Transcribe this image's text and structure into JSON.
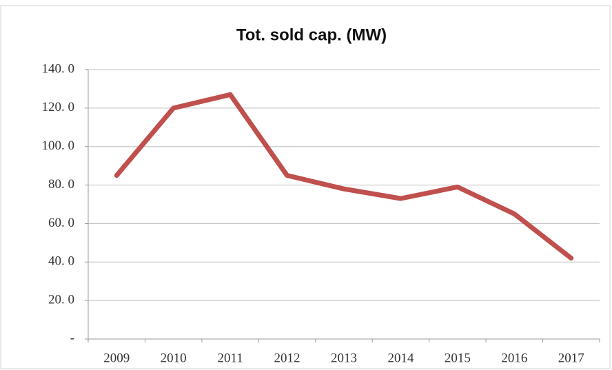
{
  "chart_data": {
    "type": "line",
    "title": "Tot. sold cap. (MW)",
    "categories": [
      "2009",
      "2010",
      "2011",
      "2012",
      "2013",
      "2014",
      "2015",
      "2016",
      "2017"
    ],
    "series": [
      {
        "name": "Tot. sold cap. (MW)",
        "color": "#c0504d",
        "values": [
          85,
          120,
          127,
          85,
          78,
          73,
          79,
          65,
          42
        ]
      }
    ],
    "ylim": [
      0,
      140
    ],
    "yticks": [
      {
        "value": 0,
        "label": "-"
      },
      {
        "value": 20,
        "label": "20. 0"
      },
      {
        "value": 40,
        "label": "40. 0"
      },
      {
        "value": 60,
        "label": "60. 0"
      },
      {
        "value": 80,
        "label": "80. 0"
      },
      {
        "value": 100,
        "label": "100. 0"
      },
      {
        "value": 120,
        "label": "120. 0"
      },
      {
        "value": 140,
        "label": "140. 0"
      }
    ],
    "grid": true
  }
}
